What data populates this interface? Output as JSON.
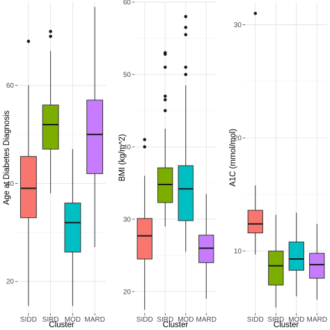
{
  "chart_data": [
    {
      "type": "box",
      "xlabel": "Cluster",
      "ylabel": "Age at Diabetes Diagnosis",
      "categories": [
        "SIDD",
        "SIRD",
        "MOD",
        "MARD"
      ],
      "yticks": [
        20,
        40,
        60
      ],
      "ylim": [
        13.5,
        77
      ],
      "grid": true,
      "boxes": [
        {
          "name": "SIDD",
          "color": "#F8766D",
          "whisker_low": 15,
          "q1": 33,
          "median": 39,
          "q3": 45.5,
          "whisker_high": 60,
          "outliers": [
            69
          ]
        },
        {
          "name": "SIRD",
          "color": "#7CAE00",
          "whisker_low": 38,
          "q1": 47,
          "median": 52,
          "q3": 56,
          "whisker_high": 67,
          "outliers": [
            70,
            71
          ]
        },
        {
          "name": "MOD",
          "color": "#00BFC4",
          "whisker_low": 15,
          "q1": 26,
          "median": 32,
          "q3": 36,
          "whisker_high": 47,
          "outliers": []
        },
        {
          "name": "MARD",
          "color": "#C77CFF",
          "whisker_low": 27,
          "q1": 42,
          "median": 50,
          "q3": 57,
          "whisker_high": 76,
          "outliers": []
        }
      ]
    },
    {
      "type": "box",
      "xlabel": "Cluster",
      "ylabel": "BMI (kg/m^2)",
      "categories": [
        "SIDD",
        "SIRD",
        "MOD",
        "MARD"
      ],
      "yticks": [
        20,
        30,
        40,
        50,
        60
      ],
      "ylim": [
        17,
        60
      ],
      "grid": true,
      "boxes": [
        {
          "name": "SIDD",
          "color": "#F8766D",
          "whisker_low": 17.5,
          "q1": 24.5,
          "median": 27.7,
          "q3": 30.1,
          "whisker_high": 36,
          "outliers": [
            40,
            41
          ]
        },
        {
          "name": "SIRD",
          "color": "#7CAE00",
          "whisker_low": 29,
          "q1": 32.3,
          "median": 34.8,
          "q3": 37.1,
          "whisker_high": 42.5,
          "outliers": [
            45,
            46.5,
            47,
            51,
            52.8,
            53
          ]
        },
        {
          "name": "MOD",
          "color": "#00BFC4",
          "whisker_low": 25.5,
          "q1": 29.8,
          "median": 34.2,
          "q3": 37.4,
          "whisker_high": 48.5,
          "outliers": [
            50,
            51,
            55.5,
            56.5,
            58
          ]
        },
        {
          "name": "MARD",
          "color": "#C77CFF",
          "whisker_low": 19,
          "q1": 24,
          "median": 26,
          "q3": 27.8,
          "whisker_high": 33.5,
          "outliers": []
        }
      ]
    },
    {
      "type": "box",
      "xlabel": "Cluster",
      "ylabel": "A1C  (mmol/mol)",
      "categories": [
        "SIDD",
        "SIRD",
        "MOD",
        "MARD"
      ],
      "yticks": [
        10,
        20,
        30
      ],
      "ylim": [
        4.5,
        32
      ],
      "grid": true,
      "boxes": [
        {
          "name": "SIDD",
          "color": "#F8766D",
          "whisker_low": 9.7,
          "q1": 11.6,
          "median": 12.4,
          "q3": 13.6,
          "whisker_high": 15.8,
          "outliers": [
            31
          ]
        },
        {
          "name": "SIRD",
          "color": "#7CAE00",
          "whisker_low": 5,
          "q1": 7,
          "median": 8.7,
          "q3": 10,
          "whisker_high": 13.2,
          "outliers": []
        },
        {
          "name": "MOD",
          "color": "#00BFC4",
          "whisker_low": 6,
          "q1": 8.3,
          "median": 9.3,
          "q3": 10.8,
          "whisker_high": 13.4,
          "outliers": []
        },
        {
          "name": "MARD",
          "color": "#C77CFF",
          "whisker_low": 5.7,
          "q1": 7.6,
          "median": 8.8,
          "q3": 9.8,
          "whisker_high": 12.4,
          "outliers": []
        }
      ]
    }
  ]
}
